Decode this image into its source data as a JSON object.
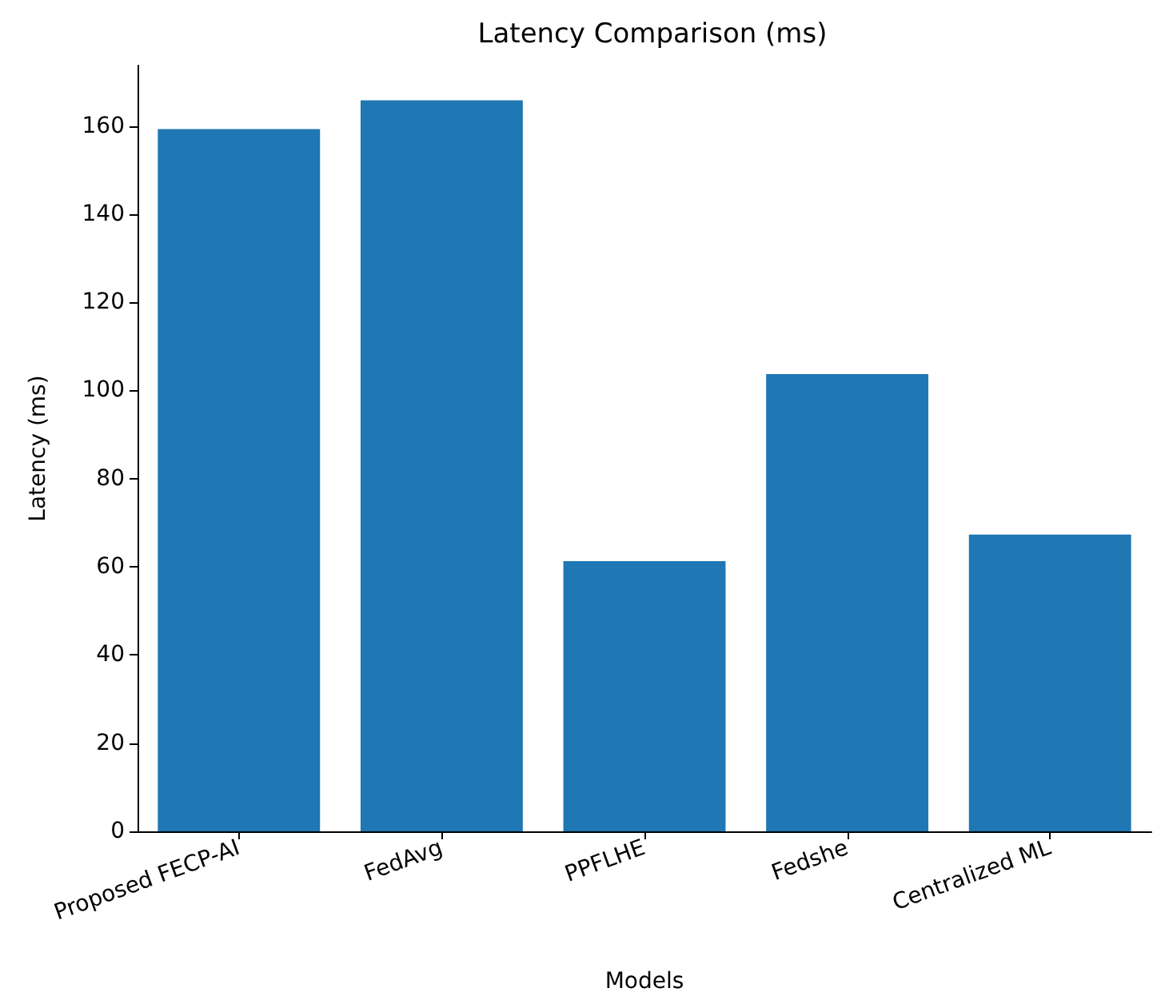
{
  "chart_data": {
    "type": "bar",
    "title": "Latency Comparison (ms)",
    "xlabel": "Models",
    "ylabel": "Latency (ms)",
    "categories": [
      "Proposed FECP-AI",
      "FedAvg",
      "PPFLHE",
      "Fedshe",
      "Centralized ML"
    ],
    "values": [
      159.3,
      165.8,
      61.3,
      103.7,
      67.3
    ],
    "color": "#1f77b4",
    "ylim": [
      0,
      173.7
    ],
    "yticks": [
      0,
      20,
      40,
      60,
      80,
      100,
      120,
      140,
      160
    ],
    "grid": false
  }
}
